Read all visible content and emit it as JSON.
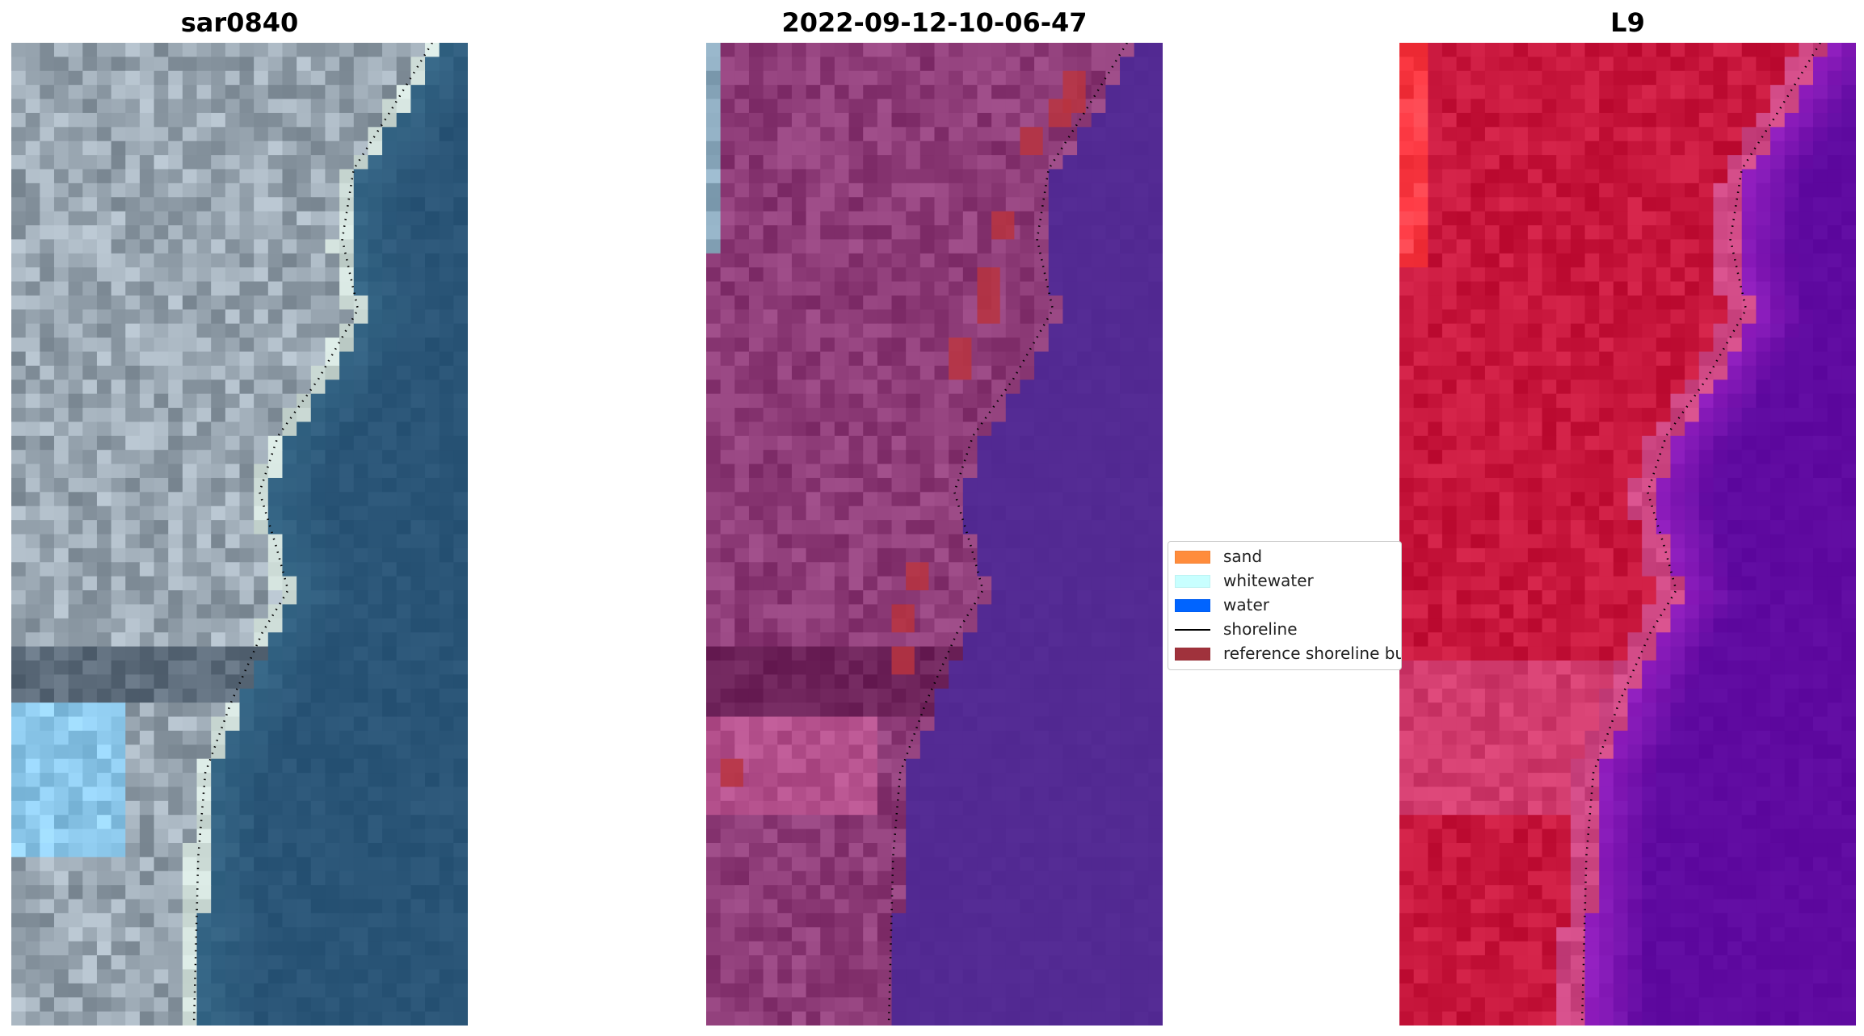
{
  "panels": [
    {
      "title": "sar0840",
      "palette": "rgb",
      "land_color": "#9aa7b2",
      "water_color": "#2a5577"
    },
    {
      "title": "2022-09-12-10-06-47",
      "palette": "classified",
      "land_color": "#8e3c78",
      "water_color": "#532a93"
    },
    {
      "title": "L9",
      "palette": "false-color",
      "land_color": "#c8173d",
      "water_color": "#5f0aa0"
    }
  ],
  "legend": {
    "items": [
      {
        "label": "sand",
        "color": "#ff8c3c",
        "kind": "patch"
      },
      {
        "label": "whitewater",
        "color": "#c8ffff",
        "kind": "patch"
      },
      {
        "label": "water",
        "color": "#0064ff",
        "kind": "patch"
      },
      {
        "label": "shoreline",
        "color": "#000000",
        "kind": "line"
      },
      {
        "label": "reference shoreline buffer",
        "color": "#a0323c",
        "kind": "patch"
      }
    ]
  },
  "colors": {
    "reference_buffer": "#b8343f",
    "shoreline_dots": "#000000"
  }
}
